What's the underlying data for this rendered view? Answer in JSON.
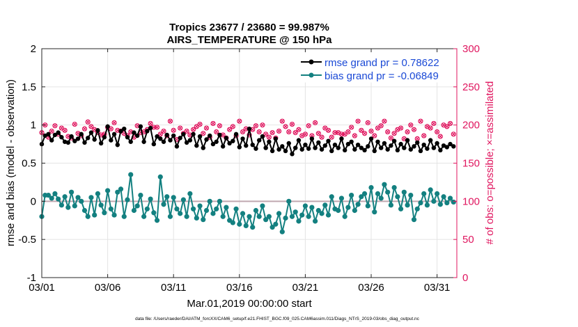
{
  "chart_data": {
    "type": "line",
    "title": "Tropics 23677 / 23680 = 99.987%",
    "subtitle": "AIRS_TEMPERATURE @ 150 hPa",
    "xlabel": "Mar.01,2019 00:00:00 start",
    "ylabel": "rmse and bias (model - observation)",
    "ylabel_right": "# of obs: o=possible; ×=assimilated",
    "footer": "data file: /Users/raeder/DAI/ATM_forcXX/CAM6_setup/f.e21.FHIST_BGC.f09_025.CAM6assim.011/Diags_NTrS_2019-03/obs_diag_output.nc",
    "xlim": [
      0,
      31.5
    ],
    "ylim": [
      -1,
      2
    ],
    "ylim_right": [
      0,
      300
    ],
    "x_tick_values": [
      0,
      5,
      10,
      15,
      20,
      25,
      30
    ],
    "x_tick_labels": [
      "03/01",
      "03/06",
      "03/11",
      "03/16",
      "03/21",
      "03/26",
      "03/31"
    ],
    "y_tick_values": [
      -1,
      -0.5,
      0,
      0.5,
      1,
      1.5,
      2
    ],
    "y_tick_labels": [
      "-1",
      "-0.5",
      "0",
      "0.5",
      "1",
      "1.5",
      "2"
    ],
    "y2_tick_values": [
      0,
      50,
      100,
      150,
      200,
      250,
      300
    ],
    "y2_tick_labels": [
      "0",
      "50",
      "100",
      "150",
      "200",
      "250",
      "300"
    ],
    "x": [
      0.0,
      0.25,
      0.5,
      0.75,
      1.0,
      1.25,
      1.5,
      1.75,
      2.0,
      2.25,
      2.5,
      2.75,
      3.0,
      3.25,
      3.5,
      3.75,
      4.0,
      4.25,
      4.5,
      4.75,
      5.0,
      5.25,
      5.5,
      5.75,
      6.0,
      6.25,
      6.5,
      6.75,
      7.0,
      7.25,
      7.5,
      7.75,
      8.0,
      8.25,
      8.5,
      8.75,
      9.0,
      9.25,
      9.5,
      9.75,
      10.0,
      10.25,
      10.5,
      10.75,
      11.0,
      11.25,
      11.5,
      11.75,
      12.0,
      12.25,
      12.5,
      12.75,
      13.0,
      13.25,
      13.5,
      13.75,
      14.0,
      14.25,
      14.5,
      14.75,
      15.0,
      15.25,
      15.5,
      15.75,
      16.0,
      16.25,
      16.5,
      16.75,
      17.0,
      17.25,
      17.5,
      17.75,
      18.0,
      18.25,
      18.5,
      18.75,
      19.0,
      19.25,
      19.5,
      19.75,
      20.0,
      20.25,
      20.5,
      20.75,
      21.0,
      21.25,
      21.5,
      21.75,
      22.0,
      22.25,
      22.5,
      22.75,
      23.0,
      23.25,
      23.5,
      23.75,
      24.0,
      24.25,
      24.5,
      24.75,
      25.0,
      25.25,
      25.5,
      25.75,
      26.0,
      26.25,
      26.5,
      26.75,
      27.0,
      27.25,
      27.5,
      27.75,
      28.0,
      28.25,
      28.5,
      28.75,
      29.0,
      29.25,
      29.5,
      29.75,
      30.0,
      30.25,
      30.5,
      30.75,
      31.0,
      31.25
    ],
    "series": [
      {
        "name": "rmse grand pr = 0.78622",
        "color": "#000000",
        "axis": "left",
        "values": [
          0.75,
          0.86,
          0.88,
          0.8,
          0.87,
          0.9,
          0.84,
          0.78,
          0.77,
          0.85,
          0.79,
          0.82,
          0.88,
          0.77,
          0.83,
          0.9,
          0.81,
          0.93,
          0.76,
          0.84,
          0.98,
          0.8,
          0.88,
          0.74,
          0.92,
          0.95,
          0.84,
          0.78,
          0.9,
          0.86,
          0.98,
          0.78,
          0.92,
          0.96,
          0.75,
          0.85,
          0.82,
          0.78,
          0.87,
          0.8,
          0.86,
          0.72,
          0.83,
          0.88,
          0.77,
          0.8,
          0.88,
          0.73,
          0.85,
          0.7,
          0.81,
          0.86,
          0.75,
          0.78,
          0.87,
          0.72,
          0.83,
          0.76,
          0.79,
          0.88,
          0.71,
          0.82,
          0.73,
          0.95,
          0.74,
          0.69,
          0.8,
          0.85,
          0.7,
          0.78,
          0.66,
          0.82,
          0.68,
          0.72,
          0.66,
          0.76,
          0.62,
          0.7,
          0.8,
          0.68,
          0.74,
          0.69,
          0.82,
          0.7,
          0.77,
          0.68,
          0.73,
          0.79,
          0.66,
          0.74,
          0.7,
          0.82,
          0.67,
          0.75,
          0.78,
          0.68,
          0.74,
          0.7,
          0.67,
          0.72,
          0.82,
          0.66,
          0.78,
          0.7,
          0.76,
          0.68,
          0.73,
          0.79,
          0.67,
          0.75,
          0.7,
          0.8,
          0.68,
          0.72,
          0.77,
          0.66,
          0.74,
          0.69,
          0.8,
          0.7,
          0.76,
          0.67,
          0.73,
          0.71,
          0.75,
          0.72
        ]
      },
      {
        "name": "bias grand pr = -0.06849",
        "color": "#138080",
        "axis": "left",
        "values": [
          -0.2,
          0.08,
          0.08,
          0.04,
          0.1,
          0.03,
          -0.05,
          0.06,
          -0.08,
          0.12,
          -0.06,
          0.05,
          0.0,
          -0.12,
          -0.2,
          0.05,
          -0.18,
          0.1,
          -0.05,
          -0.15,
          0.14,
          -0.1,
          -0.18,
          0.12,
          0.16,
          -0.2,
          0.02,
          0.35,
          -0.12,
          -0.06,
          0.08,
          -0.2,
          -0.1,
          0.03,
          -0.15,
          -0.25,
          0.32,
          -0.04,
          0.06,
          -0.2,
          0.05,
          -0.1,
          -0.16,
          0.02,
          -0.2,
          0.1,
          -0.1,
          -0.22,
          -0.06,
          -0.24,
          -0.12,
          0.0,
          -0.16,
          -0.1,
          0.0,
          -0.2,
          -0.08,
          -0.25,
          -0.28,
          -0.1,
          -0.3,
          -0.16,
          -0.32,
          -0.2,
          -0.34,
          -0.12,
          -0.2,
          -0.06,
          -0.24,
          -0.2,
          -0.34,
          -0.3,
          -0.16,
          -0.4,
          -0.22,
          0.0,
          -0.2,
          -0.14,
          -0.26,
          -0.18,
          -0.06,
          -0.2,
          -0.08,
          -0.26,
          -0.12,
          -0.16,
          -0.05,
          -0.18,
          0.06,
          -0.1,
          -0.12,
          0.04,
          -0.2,
          -0.08,
          0.08,
          -0.12,
          -0.04,
          0.06,
          0.1,
          -0.06,
          0.18,
          -0.14,
          0.1,
          0.04,
          0.22,
          0.12,
          -0.05,
          0.18,
          0.06,
          -0.1,
          0.12,
          -0.05,
          0.08,
          -0.24,
          -0.1,
          -0.02,
          0.1,
          -0.05,
          0.15,
          0.0,
          0.1,
          -0.04,
          0.06,
          -0.02,
          0.04,
          -0.01
        ]
      },
      {
        "name": "obs possible",
        "color": "#e0165f",
        "axis": "right",
        "marker": "o",
        "values": [
          190,
          200,
          184,
          192,
          199,
          188,
          196,
          193,
          185,
          183,
          201,
          189,
          186,
          195,
          204,
          198,
          194,
          190,
          187,
          188,
          197,
          195,
          203,
          193,
          192,
          189,
          186,
          191,
          184,
          199,
          190,
          191,
          194,
          202,
          197,
          197,
          188,
          192,
          186,
          205,
          193,
          181,
          196,
          189,
          192,
          187,
          194,
          198,
          201,
          189,
          196,
          184,
          202,
          191,
          199,
          187,
          183,
          194,
          198,
          186,
          205,
          191,
          195,
          187,
          194,
          199,
          191,
          200,
          188,
          184,
          190,
          183,
          192,
          205,
          198,
          191,
          201,
          190,
          194,
          186,
          188,
          199,
          186,
          203,
          189,
          184,
          196,
          193,
          184,
          190,
          190,
          188,
          188,
          191,
          197,
          186,
          205,
          193,
          189,
          203,
          192,
          186,
          196,
          199,
          205,
          191,
          183,
          189,
          194,
          196,
          182,
          191,
          200,
          194,
          182,
          205,
          186,
          198,
          196,
          202,
          191,
          185,
          200,
          198,
          202,
          188
        ]
      },
      {
        "name": "obs assimilated",
        "color": "#e0165f",
        "axis": "right",
        "marker": "x",
        "values": [
          190,
          200,
          184,
          192,
          199,
          188,
          196,
          193,
          185,
          183,
          201,
          189,
          186,
          195,
          204,
          198,
          194,
          190,
          187,
          188,
          197,
          195,
          203,
          193,
          192,
          189,
          186,
          191,
          184,
          199,
          190,
          191,
          194,
          202,
          197,
          197,
          188,
          192,
          186,
          205,
          193,
          181,
          196,
          189,
          192,
          187,
          194,
          198,
          201,
          189,
          196,
          184,
          202,
          191,
          199,
          187,
          183,
          194,
          198,
          186,
          205,
          191,
          195,
          187,
          194,
          199,
          191,
          200,
          188,
          184,
          190,
          183,
          192,
          205,
          198,
          191,
          201,
          190,
          194,
          186,
          188,
          199,
          186,
          203,
          189,
          184,
          196,
          193,
          184,
          190,
          190,
          188,
          188,
          191,
          197,
          186,
          205,
          193,
          189,
          203,
          192,
          186,
          196,
          199,
          205,
          191,
          183,
          189,
          194,
          196,
          182,
          191,
          200,
          194,
          182,
          205,
          186,
          198,
          196,
          202,
          191,
          185,
          200,
          198,
          202,
          188
        ]
      }
    ],
    "legend": [
      "rmse grand pr = 0.78622",
      "bias grand pr = -0.06849"
    ],
    "legend_position": "top-right",
    "grid": true
  }
}
